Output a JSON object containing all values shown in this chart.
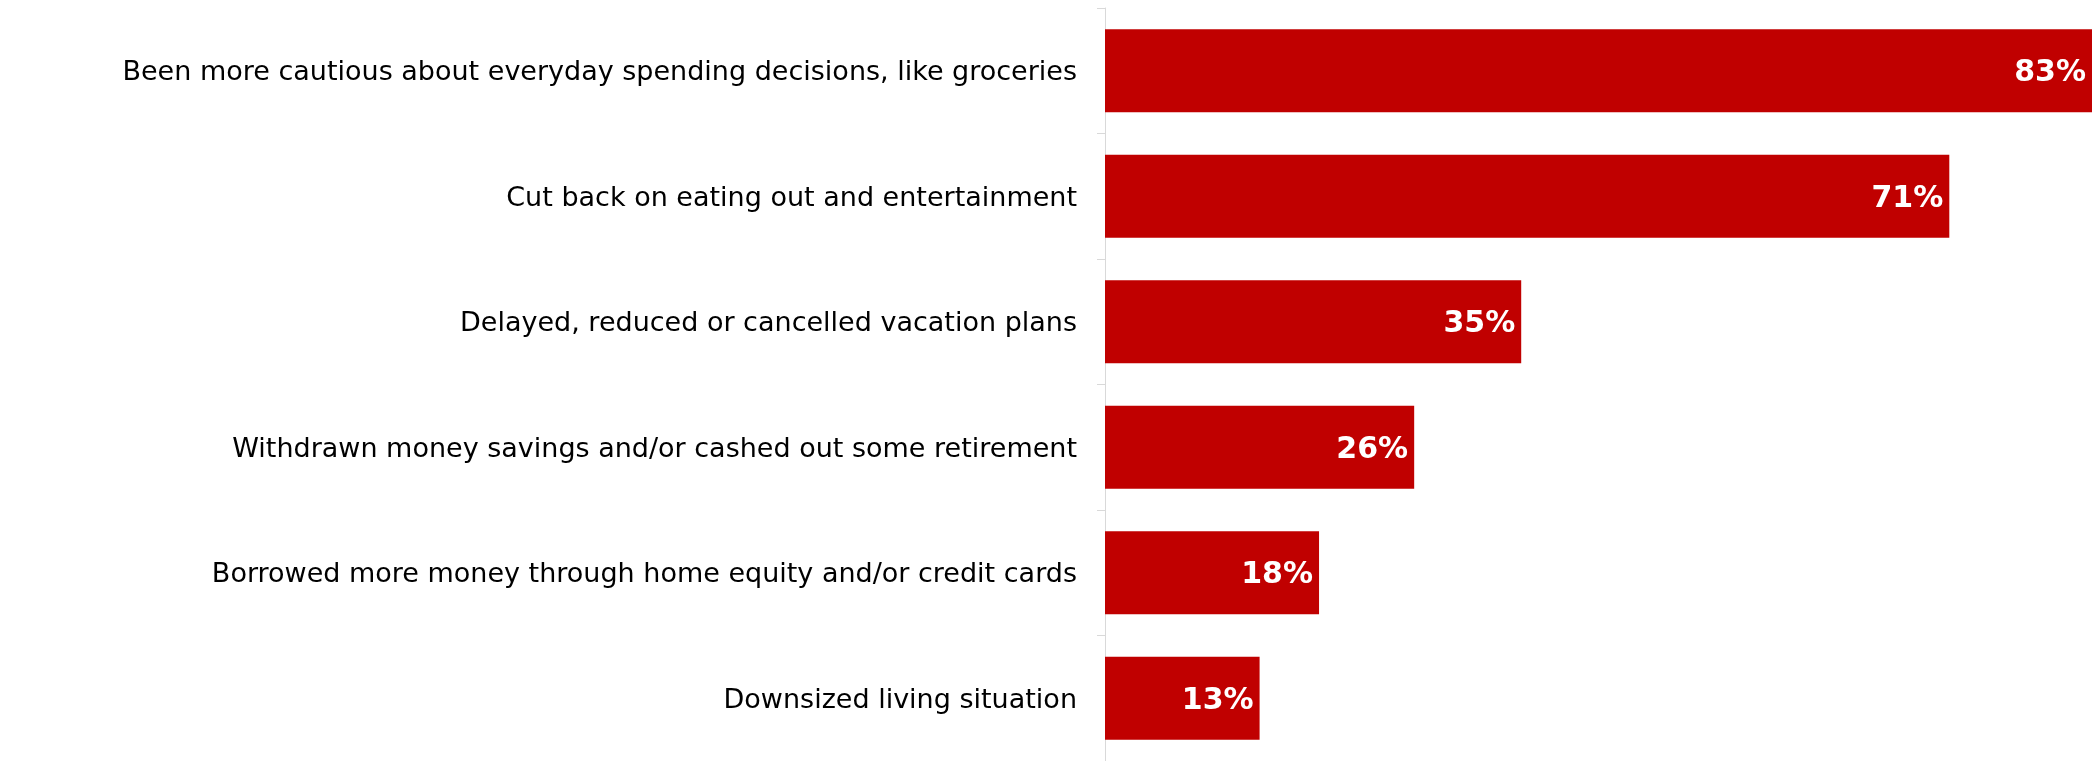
{
  "chart_data": {
    "type": "bar",
    "orientation": "horizontal",
    "categories": [
      "Been more cautious about everyday spending decisions, like groceries",
      "Cut back on eating out and entertainment",
      "Delayed, reduced or cancelled vacation plans",
      "Withdrawn money savings and/or cashed out some retirement",
      "Borrowed more money through home equity and/or credit cards",
      "Downsized living situation"
    ],
    "values": [
      83,
      71,
      35,
      26,
      18,
      13
    ],
    "value_labels": [
      "83%",
      "71%",
      "35%",
      "26%",
      "18%",
      "13%"
    ],
    "color": "#c00000"
  }
}
